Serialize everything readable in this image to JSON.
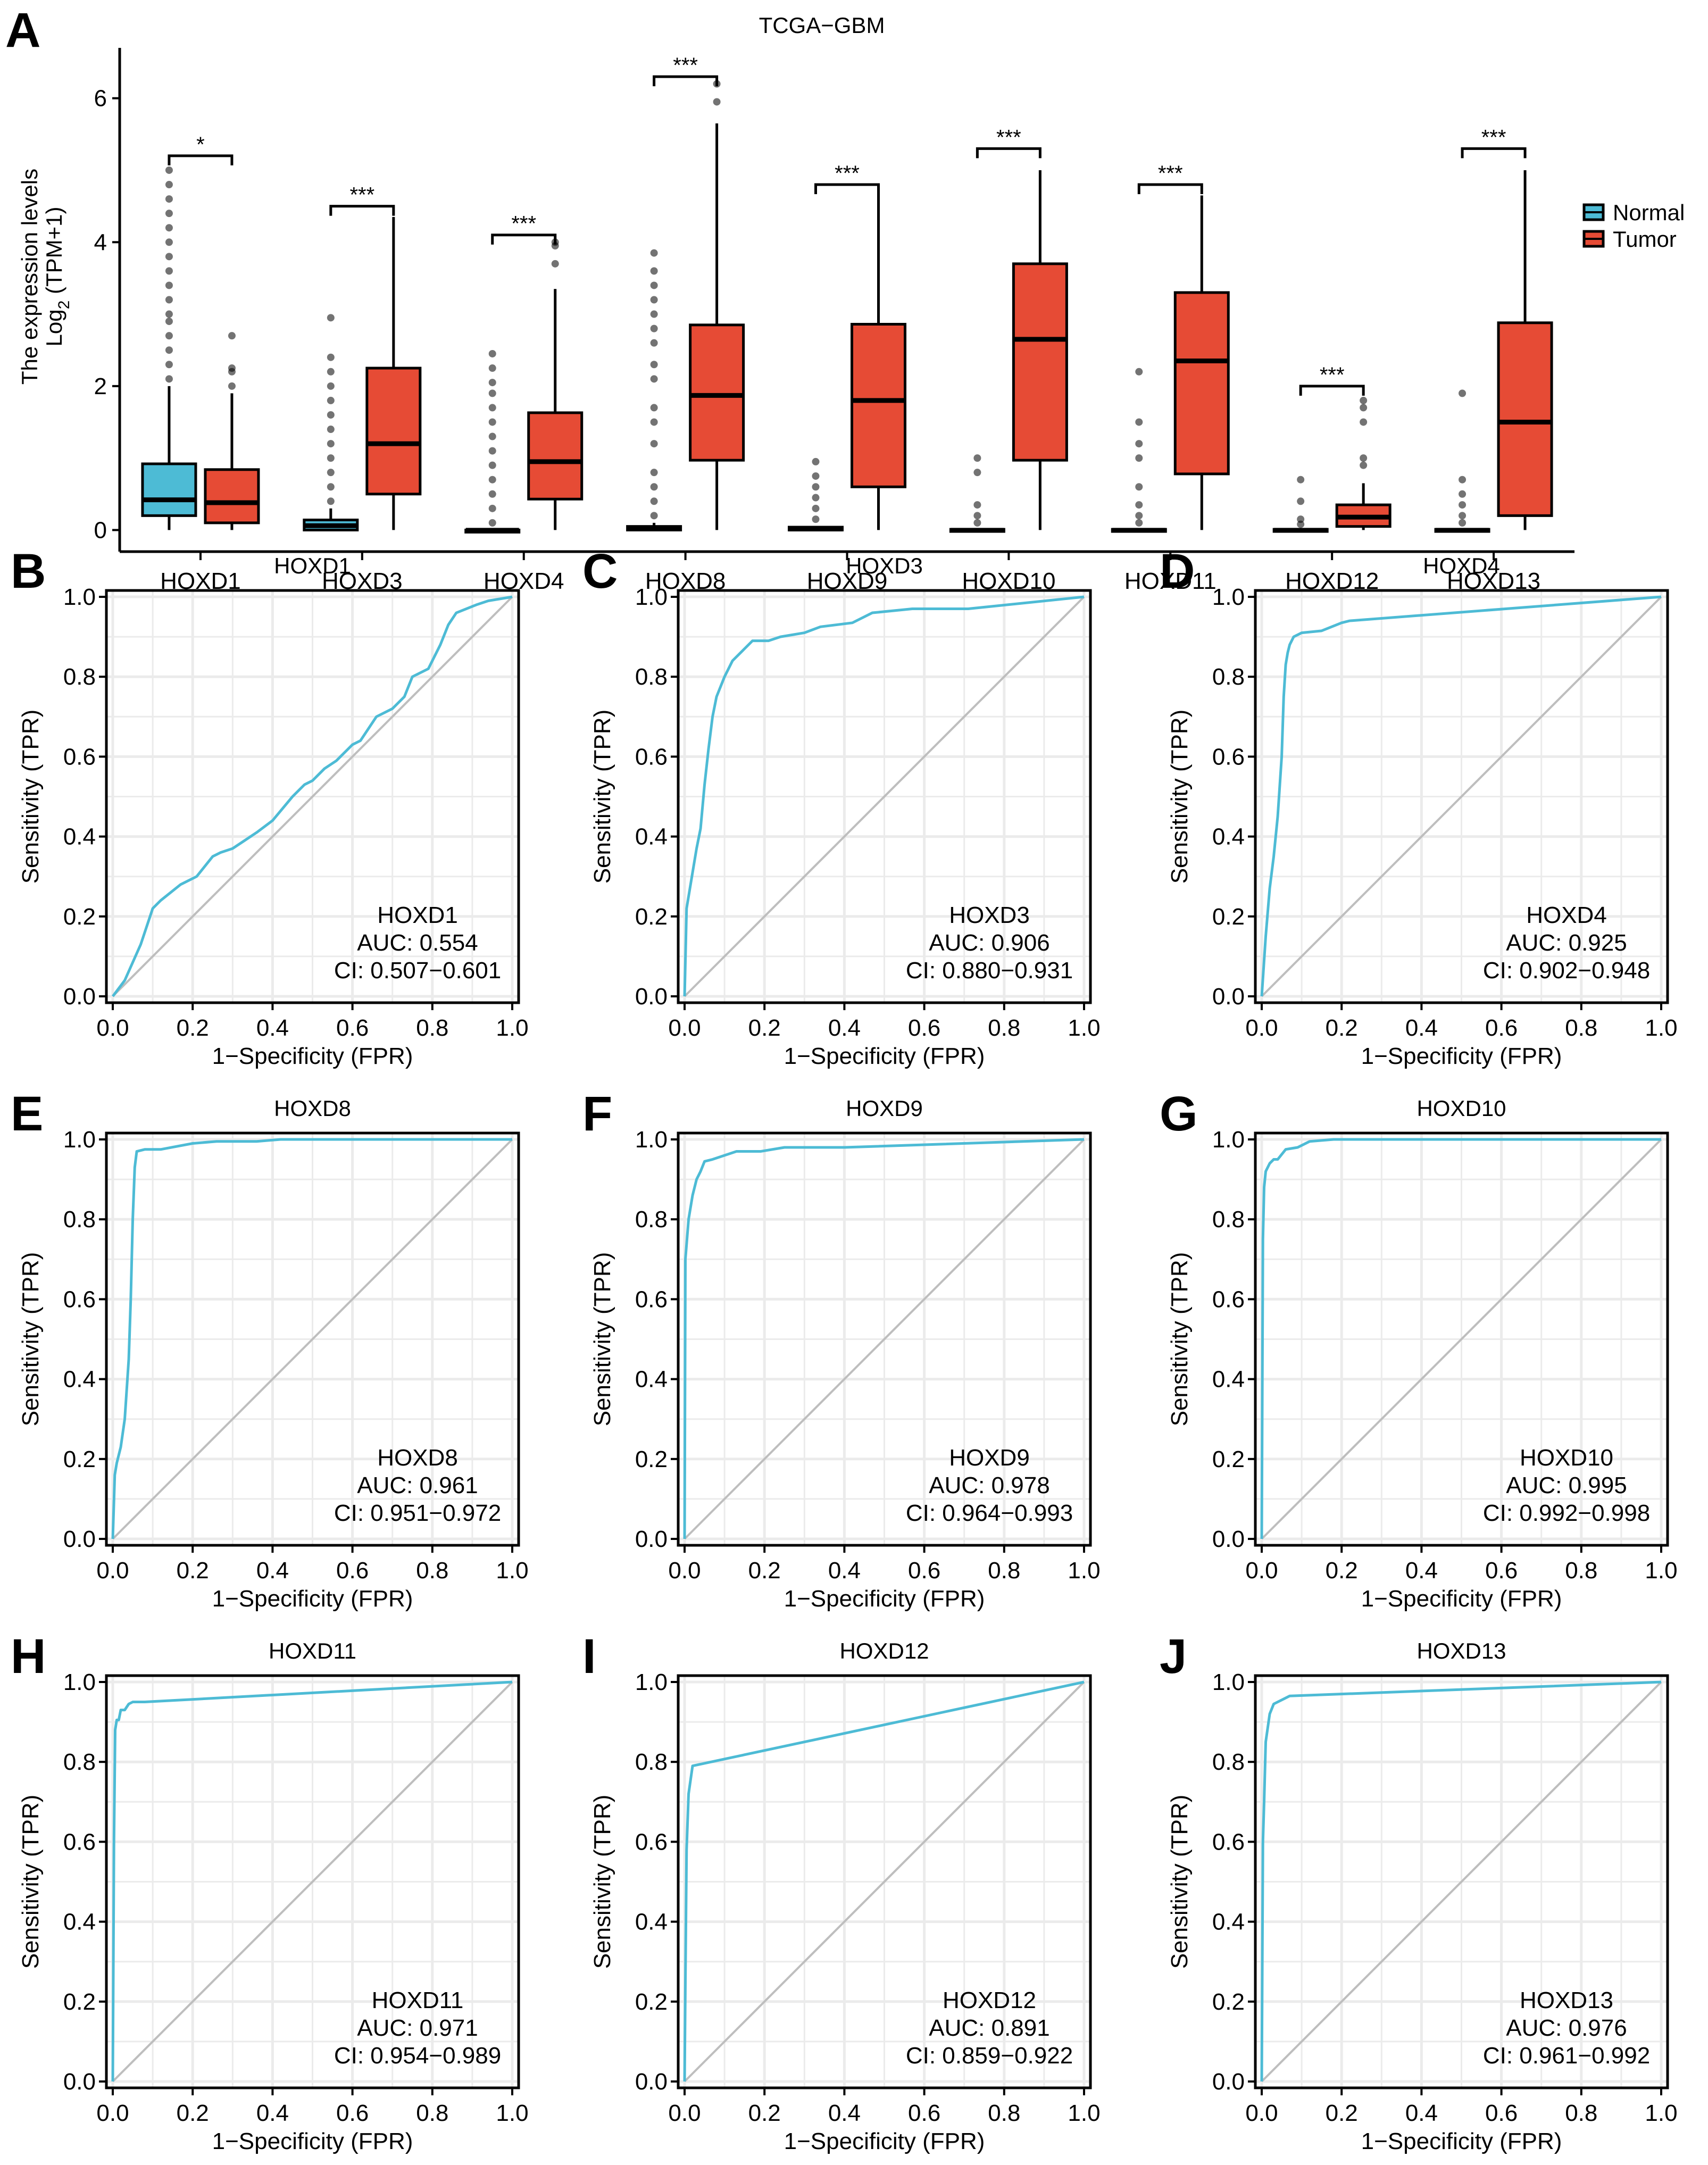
{
  "colors": {
    "normal": "#4DBBD5",
    "tumor": "#E64B35",
    "roc": "#4DBBD5",
    "diagonal": "#BEBEBE",
    "grid": "#EBEBEB",
    "outlier": "#555555"
  },
  "chart_data": [
    {
      "panel": "A",
      "type": "box",
      "title": "TCGA−GBM",
      "ylabel_line1": "The expression levels",
      "ylabel_line2_prefix": "Log",
      "ylabel_line2_sub": "2",
      "ylabel_line2_suffix": " (TPM+1)",
      "ylim": [
        -0.3,
        6.7
      ],
      "yticks": [
        "0",
        "2",
        "4",
        "6"
      ],
      "legend": {
        "placement": "right",
        "entries": [
          "Normal",
          "Tumor"
        ]
      },
      "categories": [
        "HOXD1",
        "HOXD3",
        "HOXD4",
        "HOXD8",
        "HOXD9",
        "HOXD10",
        "HOXD11",
        "HOXD12",
        "HOXD13"
      ],
      "significance": [
        "*",
        "***",
        "***",
        "***",
        "***",
        "***",
        "***",
        "***",
        "***"
      ],
      "bracket_y": [
        5.2,
        4.5,
        4.1,
        6.3,
        4.8,
        5.3,
        4.8,
        2.0,
        5.3
      ],
      "series": [
        {
          "name": "Normal",
          "boxes": [
            {
              "min": 0,
              "q1": 0.2,
              "median": 0.42,
              "q3": 0.92,
              "max": 2.0,
              "outliers": [
                2.1,
                2.3,
                2.5,
                2.7,
                2.9,
                3.0,
                3.2,
                3.4,
                3.6,
                3.8,
                4.0,
                4.2,
                4.4,
                4.6,
                4.8,
                5.0
              ]
            },
            {
              "min": 0,
              "q1": 0.0,
              "median": 0.06,
              "q3": 0.14,
              "max": 0.3,
              "outliers": [
                0.4,
                0.6,
                0.8,
                1.0,
                1.2,
                1.4,
                1.6,
                1.8,
                2.0,
                2.2,
                2.4,
                2.95
              ]
            },
            {
              "min": 0,
              "q1": 0,
              "median": 0,
              "q3": 0,
              "max": 0,
              "outliers": [
                0.1,
                0.3,
                0.5,
                0.7,
                0.9,
                1.1,
                1.3,
                1.5,
                1.7,
                1.9,
                2.05,
                2.25,
                2.45
              ]
            },
            {
              "min": 0,
              "q1": 0,
              "median": 0.02,
              "q3": 0.05,
              "max": 0.1,
              "outliers": [
                0.2,
                0.4,
                0.6,
                0.8,
                1.2,
                1.5,
                1.7,
                2.1,
                2.3,
                2.6,
                2.8,
                3.0,
                3.2,
                3.4,
                3.6,
                3.85
              ]
            },
            {
              "min": 0,
              "q1": 0,
              "median": 0.01,
              "q3": 0.04,
              "max": 0.05,
              "outliers": [
                0.15,
                0.3,
                0.45,
                0.6,
                0.75,
                0.95
              ]
            },
            {
              "min": 0,
              "q1": 0,
              "median": 0,
              "q3": 0.01,
              "max": 0.02,
              "outliers": [
                0.1,
                0.2,
                0.35,
                0.8,
                1.0
              ]
            },
            {
              "min": 0,
              "q1": 0,
              "median": 0,
              "q3": 0.01,
              "max": 0.02,
              "outliers": [
                0.1,
                0.2,
                0.35,
                0.6,
                1.0,
                1.2,
                1.5,
                2.2
              ]
            },
            {
              "min": 0,
              "q1": 0,
              "median": 0,
              "q3": 0.01,
              "max": 0.02,
              "outliers": [
                0.08,
                0.15,
                0.4,
                0.7
              ]
            },
            {
              "min": 0,
              "q1": 0,
              "median": 0,
              "q3": 0.01,
              "max": 0.02,
              "outliers": [
                0.1,
                0.2,
                0.35,
                0.5,
                0.7,
                1.9
              ]
            }
          ]
        },
        {
          "name": "Tumor",
          "boxes": [
            {
              "min": 0,
              "q1": 0.1,
              "median": 0.38,
              "q3": 0.84,
              "max": 1.9,
              "outliers": [
                2.0,
                2.2,
                2.25,
                2.7
              ]
            },
            {
              "min": 0,
              "q1": 0.5,
              "median": 1.2,
              "q3": 2.25,
              "max": 4.35,
              "outliers": []
            },
            {
              "min": 0,
              "q1": 0.43,
              "median": 0.95,
              "q3": 1.63,
              "max": 3.35,
              "outliers": [
                3.7,
                3.95,
                4.0
              ]
            },
            {
              "min": 0,
              "q1": 0.97,
              "median": 1.87,
              "q3": 2.85,
              "max": 5.65,
              "outliers": [
                5.95,
                6.2
              ]
            },
            {
              "min": 0,
              "q1": 0.6,
              "median": 1.8,
              "q3": 2.86,
              "max": 4.75,
              "outliers": []
            },
            {
              "min": 0,
              "q1": 0.97,
              "median": 2.65,
              "q3": 3.7,
              "max": 5.0,
              "outliers": []
            },
            {
              "min": 0,
              "q1": 0.78,
              "median": 2.35,
              "q3": 3.3,
              "max": 4.65,
              "outliers": []
            },
            {
              "min": 0,
              "q1": 0.05,
              "median": 0.18,
              "q3": 0.35,
              "max": 0.65,
              "outliers": [
                0.9,
                1.0,
                1.5,
                1.7,
                1.8
              ]
            },
            {
              "min": 0,
              "q1": 0.2,
              "median": 1.5,
              "q3": 2.88,
              "max": 5.0,
              "outliers": []
            }
          ]
        }
      ]
    },
    {
      "panel": "B",
      "type": "line",
      "title": "HOXD1",
      "gene": "HOXD1",
      "auc": "AUC: 0.554",
      "ci": "CI: 0.507−0.601",
      "xlabel": "1−Specificity (FPR)",
      "ylabel": "Sensitivity (TPR)",
      "xlim": [
        0,
        1
      ],
      "ylim": [
        0,
        1
      ],
      "grid": true,
      "ticks": [
        "0.0",
        "0.2",
        "0.4",
        "0.6",
        "0.8",
        "1.0"
      ],
      "fpr": [
        0,
        0.03,
        0.07,
        0.1,
        0.12,
        0.17,
        0.21,
        0.25,
        0.27,
        0.3,
        0.33,
        0.36,
        0.4,
        0.45,
        0.48,
        0.5,
        0.53,
        0.56,
        0.6,
        0.62,
        0.66,
        0.7,
        0.73,
        0.75,
        0.79,
        0.82,
        0.84,
        0.86,
        0.91,
        0.94,
        1.0
      ],
      "tpr": [
        0,
        0.04,
        0.13,
        0.22,
        0.24,
        0.28,
        0.3,
        0.35,
        0.36,
        0.37,
        0.39,
        0.41,
        0.44,
        0.5,
        0.53,
        0.54,
        0.57,
        0.59,
        0.63,
        0.64,
        0.7,
        0.72,
        0.75,
        0.8,
        0.82,
        0.88,
        0.93,
        0.96,
        0.98,
        0.99,
        1.0
      ]
    },
    {
      "panel": "C",
      "type": "line",
      "title": "HOXD3",
      "gene": "HOXD3",
      "auc": "AUC: 0.906",
      "ci": "CI: 0.880−0.931",
      "xlabel": "1−Specificity (FPR)",
      "ylabel": "Sensitivity (TPR)",
      "xlim": [
        0,
        1
      ],
      "ylim": [
        0,
        1
      ],
      "grid": true,
      "ticks": [
        "0.0",
        "0.2",
        "0.4",
        "0.6",
        "0.8",
        "1.0"
      ],
      "fpr": [
        0,
        0.005,
        0.01,
        0.02,
        0.03,
        0.04,
        0.05,
        0.06,
        0.07,
        0.08,
        0.1,
        0.12,
        0.15,
        0.17,
        0.21,
        0.24,
        0.3,
        0.34,
        0.42,
        0.47,
        0.57,
        0.71,
        1.0
      ],
      "tpr": [
        0,
        0.22,
        0.25,
        0.31,
        0.37,
        0.42,
        0.53,
        0.62,
        0.7,
        0.75,
        0.8,
        0.84,
        0.87,
        0.89,
        0.89,
        0.9,
        0.91,
        0.925,
        0.935,
        0.96,
        0.97,
        0.97,
        1.0
      ]
    },
    {
      "panel": "D",
      "type": "line",
      "title": "HOXD4",
      "gene": "HOXD4",
      "auc": "AUC: 0.925",
      "ci": "CI: 0.902−0.948",
      "xlabel": "1−Specificity (FPR)",
      "ylabel": "Sensitivity (TPR)",
      "xlim": [
        0,
        1
      ],
      "ylim": [
        0,
        1
      ],
      "grid": true,
      "ticks": [
        "0.0",
        "0.2",
        "0.4",
        "0.6",
        "0.8",
        "1.0"
      ],
      "fpr": [
        0,
        0.01,
        0.02,
        0.03,
        0.04,
        0.05,
        0.055,
        0.06,
        0.065,
        0.07,
        0.08,
        0.1,
        0.15,
        0.2,
        0.22,
        1.0
      ],
      "tpr": [
        0,
        0.15,
        0.27,
        0.35,
        0.45,
        0.6,
        0.75,
        0.83,
        0.86,
        0.88,
        0.9,
        0.91,
        0.915,
        0.935,
        0.94,
        1.0
      ]
    },
    {
      "panel": "E",
      "type": "line",
      "title": "HOXD8",
      "gene": "HOXD8",
      "auc": "AUC: 0.961",
      "ci": "CI: 0.951−0.972",
      "xlabel": "1−Specificity (FPR)",
      "ylabel": "Sensitivity (TPR)",
      "xlim": [
        0,
        1
      ],
      "ylim": [
        0,
        1
      ],
      "grid": true,
      "ticks": [
        "0.0",
        "0.2",
        "0.4",
        "0.6",
        "0.8",
        "1.0"
      ],
      "fpr": [
        0,
        0.005,
        0.01,
        0.02,
        0.03,
        0.04,
        0.045,
        0.05,
        0.055,
        0.06,
        0.08,
        0.12,
        0.2,
        0.26,
        0.36,
        0.42,
        1.0
      ],
      "tpr": [
        0,
        0.16,
        0.19,
        0.23,
        0.3,
        0.45,
        0.6,
        0.8,
        0.93,
        0.97,
        0.975,
        0.975,
        0.99,
        0.995,
        0.995,
        1.0,
        1.0
      ]
    },
    {
      "panel": "F",
      "type": "line",
      "title": "HOXD9",
      "gene": "HOXD9",
      "auc": "AUC: 0.978",
      "ci": "CI: 0.964−0.993",
      "xlabel": "1−Specificity (FPR)",
      "ylabel": "Sensitivity (TPR)",
      "xlim": [
        0,
        1
      ],
      "ylim": [
        0,
        1
      ],
      "grid": true,
      "ticks": [
        "0.0",
        "0.2",
        "0.4",
        "0.6",
        "0.8",
        "1.0"
      ],
      "fpr": [
        0,
        0.002,
        0.01,
        0.02,
        0.03,
        0.04,
        0.05,
        0.07,
        0.1,
        0.13,
        0.19,
        0.25,
        0.4,
        1.0
      ],
      "tpr": [
        0,
        0.7,
        0.8,
        0.86,
        0.9,
        0.92,
        0.945,
        0.95,
        0.96,
        0.97,
        0.97,
        0.98,
        0.98,
        1.0
      ]
    },
    {
      "panel": "G",
      "type": "line",
      "title": "HOXD10",
      "gene": "HOXD10",
      "auc": "AUC: 0.995",
      "ci": "CI: 0.992−0.998",
      "xlabel": "1−Specificity (FPR)",
      "ylabel": "Sensitivity (TPR)",
      "xlim": [
        0,
        1
      ],
      "ylim": [
        0,
        1
      ],
      "grid": true,
      "ticks": [
        "0.0",
        "0.2",
        "0.4",
        "0.6",
        "0.8",
        "1.0"
      ],
      "fpr": [
        0,
        0.003,
        0.006,
        0.01,
        0.02,
        0.03,
        0.04,
        0.06,
        0.09,
        0.12,
        0.18,
        1.0
      ],
      "tpr": [
        0,
        0.75,
        0.88,
        0.92,
        0.94,
        0.95,
        0.95,
        0.975,
        0.98,
        0.995,
        1.0,
        1.0
      ]
    },
    {
      "panel": "H",
      "type": "line",
      "title": "HOXD11",
      "gene": "HOXD11",
      "auc": "AUC: 0.971",
      "ci": "CI: 0.954−0.989",
      "xlabel": "1−Specificity (FPR)",
      "ylabel": "Sensitivity (TPR)",
      "xlim": [
        0,
        1
      ],
      "ylim": [
        0,
        1
      ],
      "grid": true,
      "ticks": [
        "0.0",
        "0.2",
        "0.4",
        "0.6",
        "0.8",
        "1.0"
      ],
      "fpr": [
        0,
        0.003,
        0.006,
        0.01,
        0.015,
        0.02,
        0.03,
        0.04,
        0.05,
        0.08,
        1.0
      ],
      "tpr": [
        0,
        0.6,
        0.88,
        0.905,
        0.905,
        0.93,
        0.93,
        0.945,
        0.95,
        0.95,
        1.0
      ]
    },
    {
      "panel": "I",
      "type": "line",
      "title": "HOXD12",
      "gene": "HOXD12",
      "auc": "AUC: 0.891",
      "ci": "CI: 0.859−0.922",
      "xlabel": "1−Specificity (FPR)",
      "ylabel": "Sensitivity (TPR)",
      "xlim": [
        0,
        1
      ],
      "ylim": [
        0,
        1
      ],
      "grid": true,
      "ticks": [
        "0.0",
        "0.2",
        "0.4",
        "0.6",
        "0.8",
        "1.0"
      ],
      "fpr": [
        0,
        0.002,
        0.005,
        0.01,
        0.02,
        1.0
      ],
      "tpr": [
        0,
        0.25,
        0.58,
        0.72,
        0.79,
        1.0
      ]
    },
    {
      "panel": "J",
      "type": "line",
      "title": "HOXD13",
      "gene": "HOXD13",
      "auc": "AUC: 0.976",
      "ci": "CI: 0.961−0.992",
      "xlabel": "1−Specificity (FPR)",
      "ylabel": "Sensitivity (TPR)",
      "xlim": [
        0,
        1
      ],
      "ylim": [
        0,
        1
      ],
      "grid": true,
      "ticks": [
        "0.0",
        "0.2",
        "0.4",
        "0.6",
        "0.8",
        "1.0"
      ],
      "fpr": [
        0,
        0.003,
        0.006,
        0.01,
        0.02,
        0.03,
        0.07,
        1.0
      ],
      "tpr": [
        0,
        0.6,
        0.7,
        0.85,
        0.92,
        0.945,
        0.965,
        1.0
      ]
    }
  ]
}
